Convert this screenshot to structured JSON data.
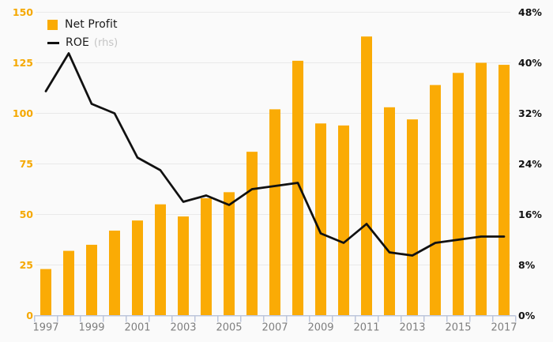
{
  "page": {
    "background": "#FAFAFA"
  },
  "chart_data": {
    "type": "bar+line",
    "title": "",
    "xlabel": "",
    "ylabel_left": "",
    "ylabel_right": "",
    "categories": [
      "1997",
      "1998",
      "1999",
      "2000",
      "2001",
      "2002",
      "2003",
      "2004",
      "2005",
      "2006",
      "2007",
      "2008",
      "2009",
      "2010",
      "2011",
      "2012",
      "2013",
      "2014",
      "2015",
      "2016",
      "2017"
    ],
    "x_axis": {
      "tick_labels_shown": [
        "1997",
        "1999",
        "2001",
        "2003",
        "2005",
        "2007",
        "2009",
        "2011",
        "2013",
        "2015",
        "2017"
      ],
      "label_color": "#7F7F7F",
      "axis_color": "#BDC6DB"
    },
    "left_axis": {
      "min": 0,
      "max": 150,
      "step": 25,
      "tick_labels": [
        "0",
        "25",
        "50",
        "75",
        "100",
        "125",
        "150"
      ],
      "color": "#F5A800"
    },
    "right_axis": {
      "min": 0,
      "max": 48,
      "step": 8,
      "tick_labels": [
        "0%",
        "8%",
        "16%",
        "24%",
        "32%",
        "40%",
        "48%"
      ],
      "color": "#111111"
    },
    "grid": true,
    "grid_color": "#E9E9E9",
    "legend_position": "top-left",
    "legend": [
      {
        "label": "Net Profit",
        "suffix": "",
        "swatch": "square",
        "color": "#FAAB05"
      },
      {
        "label": "ROE",
        "suffix": "(rhs)",
        "swatch": "line",
        "color": "#111111"
      }
    ],
    "series": [
      {
        "name": "Net Profit",
        "type": "bar",
        "axis": "left",
        "color": "#FAAB05",
        "values": [
          23,
          32,
          35,
          42,
          47,
          55,
          49,
          58,
          61,
          81,
          102,
          126,
          95,
          94,
          138,
          103,
          97,
          114,
          120,
          125,
          124
        ]
      },
      {
        "name": "ROE",
        "type": "line",
        "axis": "right",
        "unit": "%",
        "color": "#111111",
        "values": [
          35.5,
          41.5,
          33.5,
          32,
          25,
          23,
          18,
          19,
          17.5,
          20,
          20.5,
          21,
          13,
          11.5,
          14.5,
          10,
          9.5,
          11.5,
          12,
          12.5,
          12.5
        ]
      }
    ]
  }
}
